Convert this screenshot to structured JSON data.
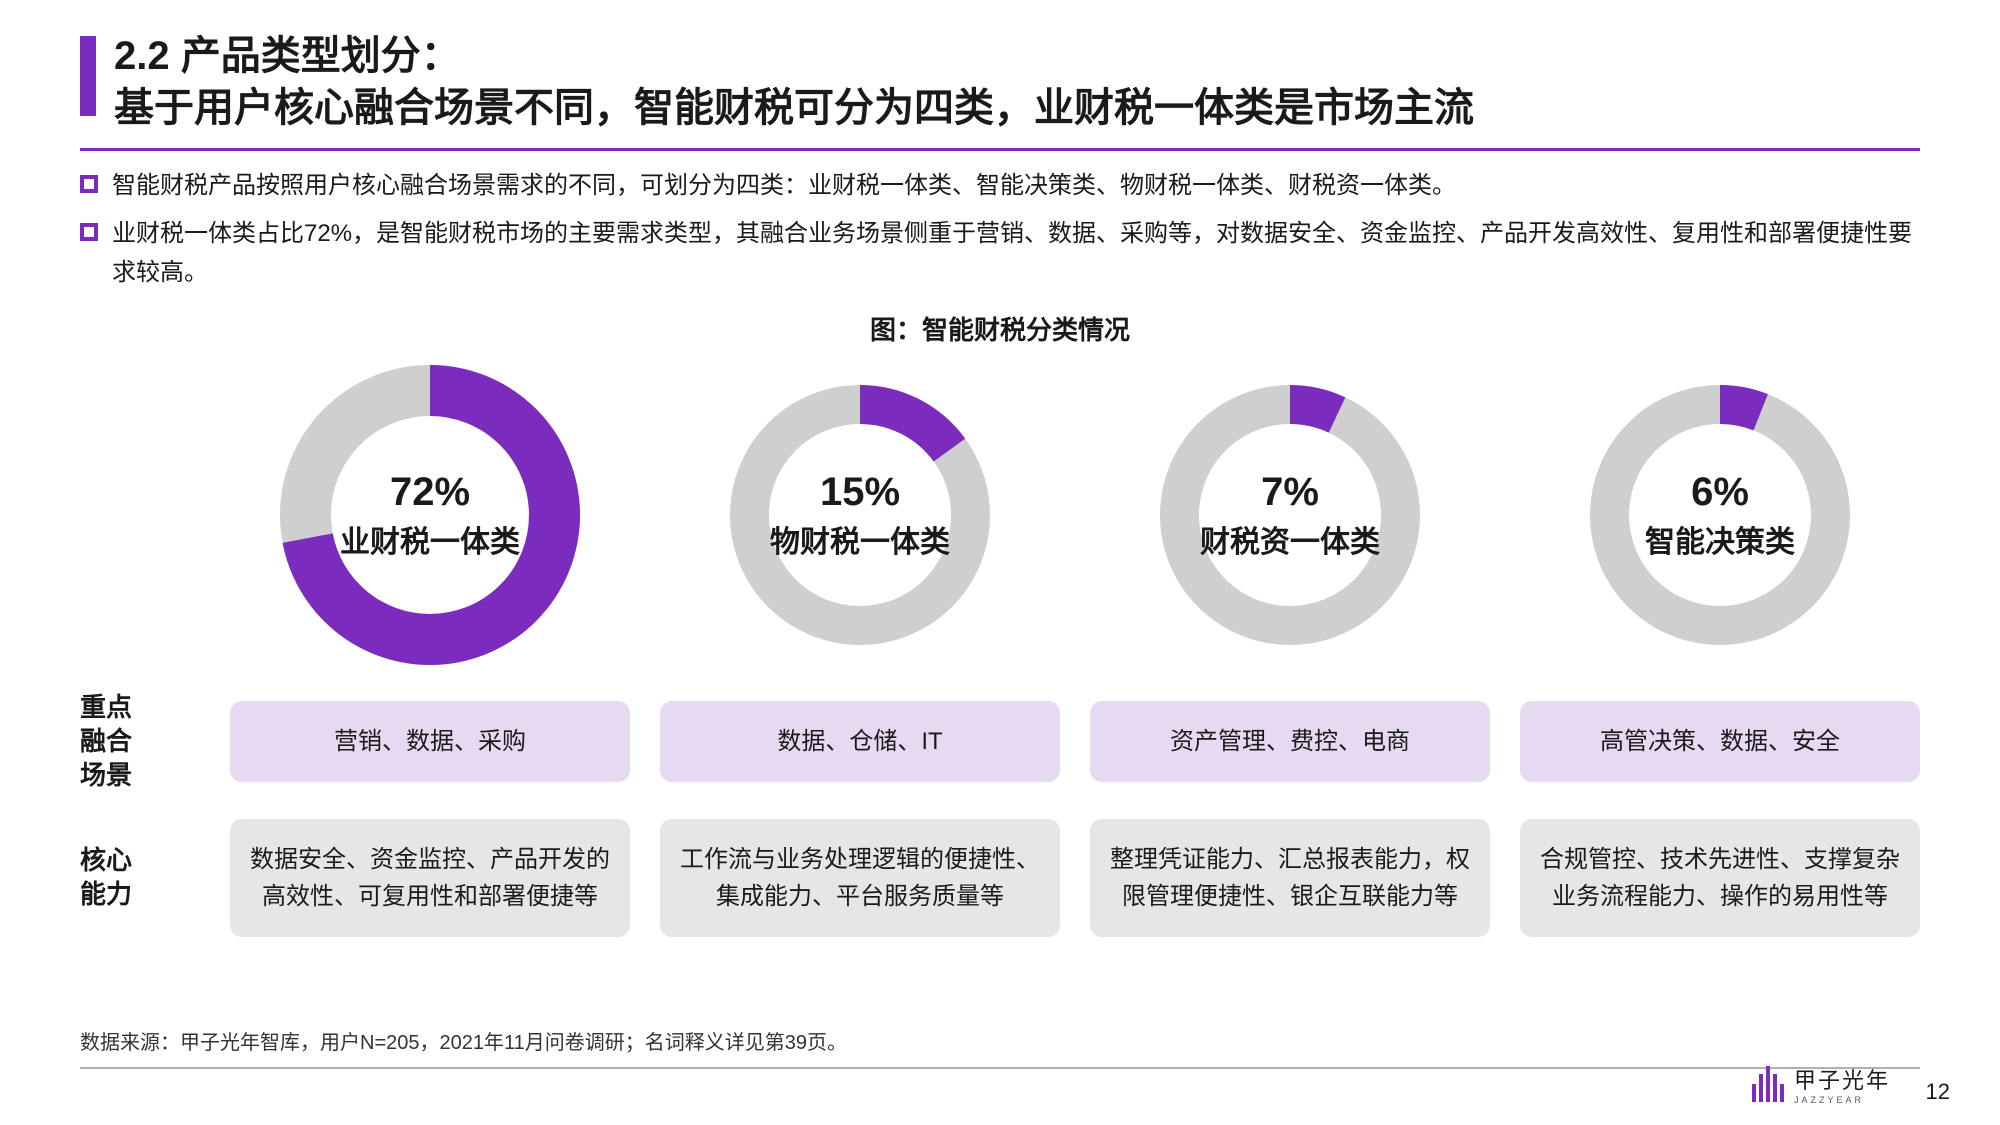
{
  "title": {
    "section": "2.2 产品类型划分：",
    "headline": "基于用户核心融合场景不同，智能财税可分为四类，业财税一体类是市场主流"
  },
  "bullets": [
    "智能财税产品按照用户核心融合场景需求的不同，可划分为四类：业财税一体类、智能决策类、物财税一体类、财税资一体类。",
    "业财税一体类占比72%，是智能财税市场的主要需求类型，其融合业务场景侧重于营销、数据、采购等，对数据安全、资金监控、产品开发高效性、复用性和部署便捷性要求较高。"
  ],
  "chart": {
    "title": "图：智能财税分类情况",
    "ring_bg": "#cfcfcf",
    "ring_fg": "#7b2cbf",
    "stroke_width": 30,
    "stroke_width_big": 34,
    "row_labels": {
      "scene": "重点融合场景",
      "capability": "核心能力"
    },
    "items": [
      {
        "percent": 72,
        "label": "业财税一体类",
        "big": true,
        "scene": "营销、数据、采购",
        "capability": "数据安全、资金监控、产品开发的高效性、可复用性和部署便捷等"
      },
      {
        "percent": 15,
        "label": "物财税一体类",
        "big": false,
        "scene": "数据、仓储、IT",
        "capability": "工作流与业务处理逻辑的便捷性、集成能力、平台服务质量等"
      },
      {
        "percent": 7,
        "label": "财税资一体类",
        "big": false,
        "scene": "资产管理、费控、电商",
        "capability": "整理凭证能力、汇总报表能力，权限管理便捷性、银企互联能力等"
      },
      {
        "percent": 6,
        "label": "智能决策类",
        "big": false,
        "scene": "高管决策、数据、安全",
        "capability": "合规管控、技术先进性、支撑复杂业务流程能力、操作的易用性等"
      }
    ]
  },
  "source": "数据来源：甲子光年智库，用户N=205，2021年11月问卷调研；名词释义详见第39页。",
  "brand": {
    "name": "甲子光年",
    "sub": "JAZZYEAR"
  },
  "page": "12",
  "colors": {
    "accent": "#7b2cbf",
    "scene_bg": "#e6d9f2",
    "cap_bg": "#e6e6e6"
  }
}
